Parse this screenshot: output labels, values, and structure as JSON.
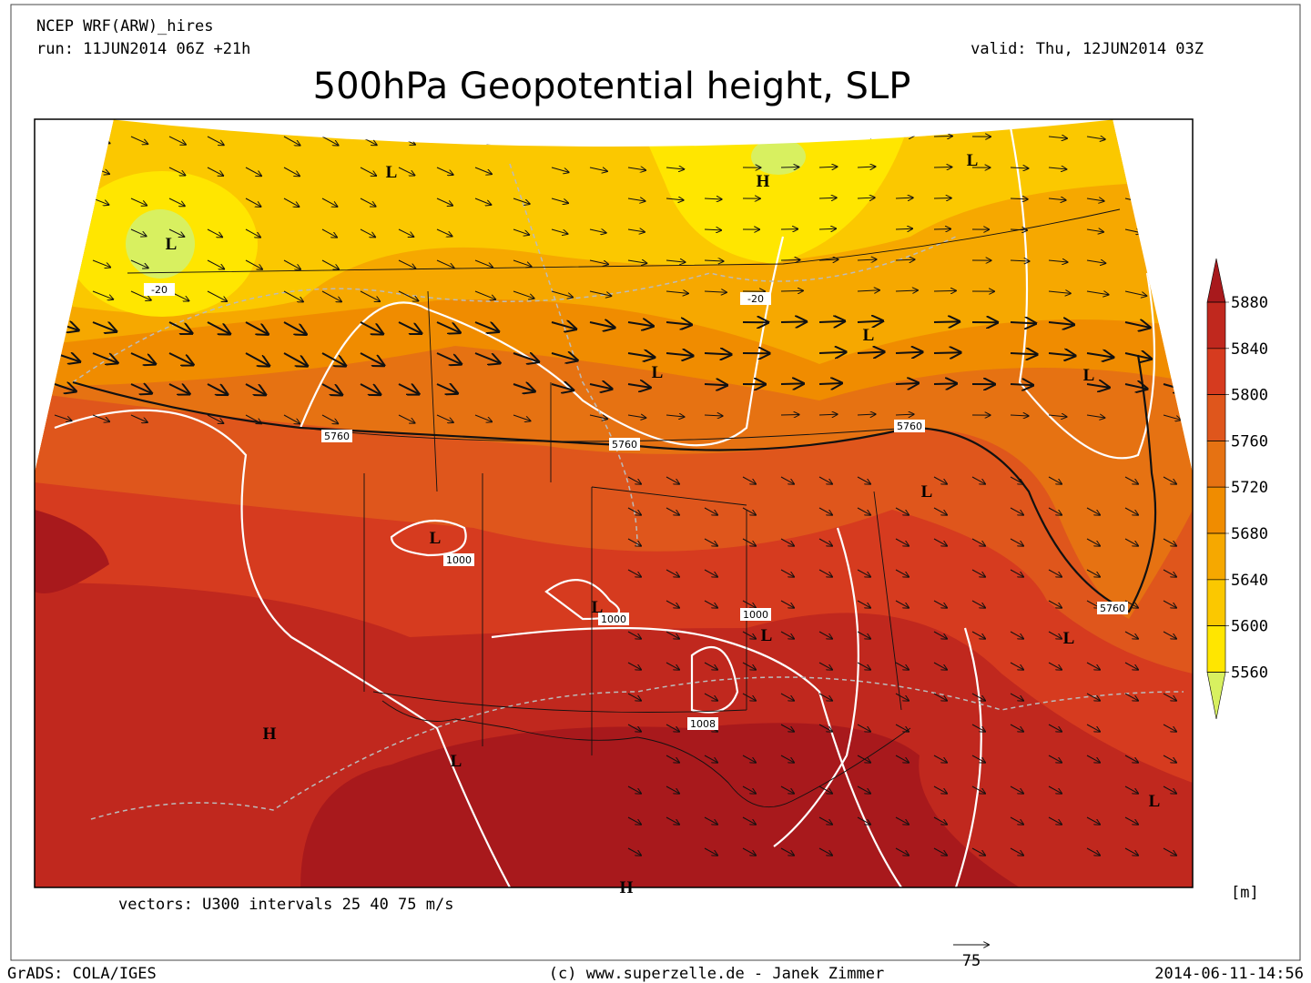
{
  "header": {
    "model": "NCEP WRF(ARW)_hires",
    "run": "run: 11JUN2014 06Z +21h",
    "valid": "valid: Thu, 12JUN2014 03Z",
    "title": "500hPa Geopotential height, SLP"
  },
  "map": {
    "centers": [
      "L",
      "L",
      "H",
      "L",
      "L",
      "L",
      "L",
      "L",
      "L",
      "L",
      "L",
      "L",
      "H",
      "L",
      "L",
      "H"
    ],
    "contour_labels": [
      "5760",
      "5760",
      "5760",
      "5760",
      "1000",
      "1000",
      "1000",
      "1008",
      "-20",
      "-20"
    ]
  },
  "colorbar": {
    "levels": [
      5880,
      5840,
      5800,
      5760,
      5720,
      5680,
      5640,
      5600,
      5560
    ],
    "colors": [
      "#a8191c",
      "#c0281e",
      "#d63b1f",
      "#df561c",
      "#e67212",
      "#f08c00",
      "#f6a800",
      "#fbc800",
      "#ffe600",
      "#d8f060"
    ],
    "unit": "[m]"
  },
  "legend": {
    "vectors": "vectors: U300 intervals 25 40 75 m/s",
    "reference": "75"
  },
  "footer": {
    "left": "GrADS: COLA/IGES",
    "center": "(c) www.superzelle.de - Janek Zimmer",
    "right": "2014-06-11-14:56"
  }
}
